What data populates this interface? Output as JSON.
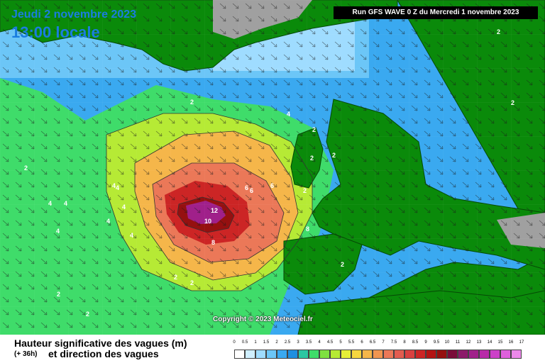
{
  "header": {
    "date": "Jeudi 2 novembre 2023",
    "time": "13:00 locale",
    "run": "Run GFS WAVE 0 Z du Mercredi 1 novembre 2023"
  },
  "copyright": "Copyright © 2023 Meteociel.fr",
  "legend": {
    "title": "Hauteur significative des vagues (m)",
    "lead": "(+ 36h)",
    "subtitle": "et direction des vagues",
    "ticks": [
      "0",
      "0.5",
      "1",
      "1.5",
      "2",
      "2.5",
      "3",
      "3.5",
      "4",
      "4.5",
      "5",
      "5.5",
      "6",
      "6.5",
      "7",
      "7.5",
      "8",
      "8.5",
      "9",
      "9.5",
      "10",
      "11",
      "12",
      "13",
      "14",
      "15",
      "16",
      "17"
    ],
    "colors": [
      "#ffffff",
      "#cfefff",
      "#9fdcff",
      "#6cc6f7",
      "#3aa9f0",
      "#1f8fe0",
      "#2bc7a2",
      "#3fdc6a",
      "#7ee040",
      "#b6ea35",
      "#e6ef38",
      "#f5d640",
      "#f5b64a",
      "#f09550",
      "#eb7858",
      "#e25c50",
      "#d94040",
      "#cc2525",
      "#b31414",
      "#951010",
      "#7a0c3a",
      "#8c1a6a",
      "#a0208a",
      "#b82aa8",
      "#cc40c8",
      "#de60dc",
      "#ec88ea"
    ]
  },
  "map": {
    "colors": {
      "land": "#0a8a0a",
      "coast": "#064806",
      "ice": "#a0a0a0",
      "calm": "#cfefff",
      "low": "#3aa9f0",
      "mid": "#3fdc6a",
      "high": "#f5b64a",
      "extreme": "#951010",
      "peak": "#a0208a"
    },
    "contour_labels": [
      "2",
      "2",
      "2",
      "2",
      "2",
      "2",
      "2",
      "2",
      "2",
      "2",
      "2",
      "2",
      "2",
      "4",
      "4",
      "4",
      "4",
      "4",
      "4",
      "4",
      "4",
      "4",
      "6",
      "6",
      "6",
      "8",
      "8",
      "10",
      "12"
    ]
  }
}
